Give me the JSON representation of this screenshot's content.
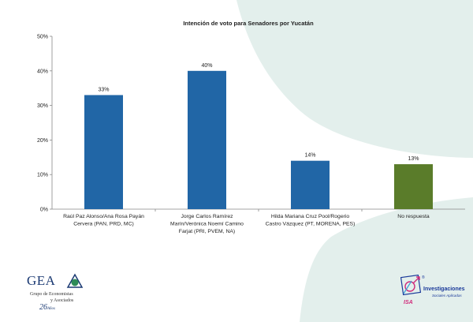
{
  "chart_data": {
    "type": "bar",
    "title": "Intención de voto para Senadores por Yucatán",
    "categories": [
      [
        "Raúl Paz Alonso/Ana Rosa Payán",
        "Cervera (PAN, PRD, MC)"
      ],
      [
        "Jorge Carlos Ramírez",
        "Marín/Verónica Noemí Camino",
        "Farjat (PRI, PVEM, NA)"
      ],
      [
        "Hilda Mariana Cruz Pool/Rogerio",
        "Castro Vázquez (PT, MORENA, PES)"
      ],
      [
        "No respuesta"
      ]
    ],
    "values": [
      33,
      40,
      14,
      13
    ],
    "data_labels": [
      "33%",
      "40%",
      "14%",
      "13%"
    ],
    "bar_colors": [
      "#2166a6",
      "#2166a6",
      "#2166a6",
      "#5a7c2a"
    ],
    "ylim": [
      0,
      50
    ],
    "yticks": [
      "0%",
      "10%",
      "20%",
      "30%",
      "40%",
      "50%"
    ],
    "grid": false,
    "legend": "none"
  },
  "colors": {
    "background_decor": "#e3efec",
    "text": "#222222"
  },
  "logos": {
    "gea": {
      "acronym": "GEA",
      "line1": "Grupo de Economistas",
      "line2": "y Asociados",
      "years": "26",
      "years_suffix": "Años"
    },
    "isa": {
      "name": "Investigaciones",
      "subtitle": "Sociales Aplicadas",
      "acronym": "ISA",
      "mark": "®"
    }
  }
}
